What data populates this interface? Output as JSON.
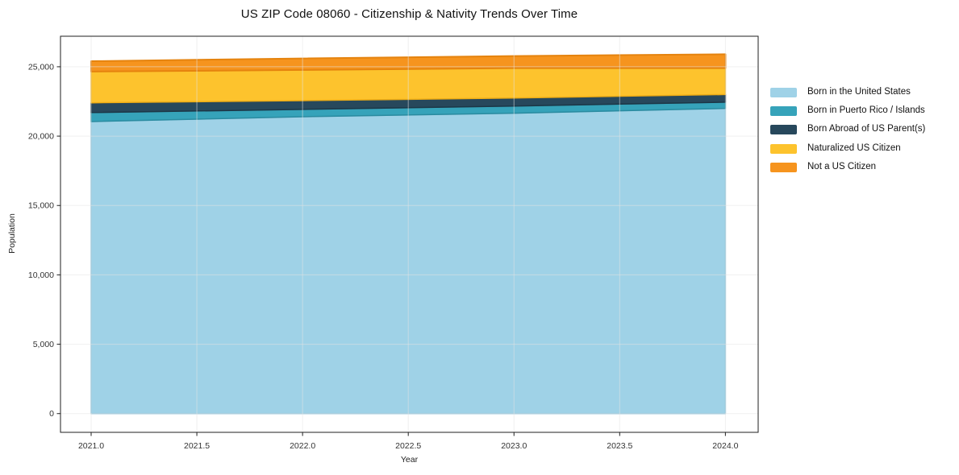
{
  "title": "US ZIP Code 08060 - Citizenship & Nativity Trends Over Time",
  "chart_data": {
    "type": "area",
    "stacked": true,
    "title": "US ZIP Code 08060 - Citizenship & Nativity Trends Over Time",
    "xlabel": "Year",
    "ylabel": "Population",
    "grid": true,
    "legend_position": "right-outside",
    "x": [
      2021,
      2022,
      2023,
      2024
    ],
    "xlim": [
      2020.855,
      2024.155
    ],
    "ylim": [
      -1350,
      27200
    ],
    "x_ticks": [
      {
        "value": 2021.0,
        "label": "2021.0"
      },
      {
        "value": 2021.5,
        "label": "2021.5"
      },
      {
        "value": 2022.0,
        "label": "2022.0"
      },
      {
        "value": 2022.5,
        "label": "2022.5"
      },
      {
        "value": 2023.0,
        "label": "2023.0"
      },
      {
        "value": 2023.5,
        "label": "2023.5"
      },
      {
        "value": 2024.0,
        "label": "2024.0"
      }
    ],
    "y_ticks": [
      {
        "value": 0,
        "label": "0"
      },
      {
        "value": 5000,
        "label": "5,000"
      },
      {
        "value": 10000,
        "label": "10,000"
      },
      {
        "value": 15000,
        "label": "15,000"
      },
      {
        "value": 20000,
        "label": "20,000"
      },
      {
        "value": 25000,
        "label": "25,000"
      }
    ],
    "series": [
      {
        "name": "Born in the United States",
        "color": "#9fd2e7",
        "edge_color": "#86c0da",
        "values": [
          21050,
          21400,
          21650,
          22000
        ]
      },
      {
        "name": "Born in Puerto Rico / Islands",
        "color": "#36a3ba",
        "edge_color": "#2a8ba0",
        "values": [
          650,
          525,
          520,
          450
        ]
      },
      {
        "name": "Born Abroad of US Parent(s)",
        "color": "#27485c",
        "edge_color": "#1c3747",
        "values": [
          700,
          635,
          580,
          550
        ]
      },
      {
        "name": "Naturalized US Citizen",
        "color": "#fdc32d",
        "edge_color": "#efad15",
        "values": [
          2250,
          2210,
          2150,
          1900
        ]
      },
      {
        "name": "Not a US Citizen",
        "color": "#f6941e",
        "edge_color": "#e5830e",
        "values": [
          750,
          830,
          870,
          1000
        ]
      }
    ],
    "stack_totals": [
      25400,
      25600,
      25770,
      25900
    ]
  },
  "colors": {
    "grid": "#e3e3e3",
    "spine": "#1f1f1f",
    "tick_text": "#333333"
  }
}
